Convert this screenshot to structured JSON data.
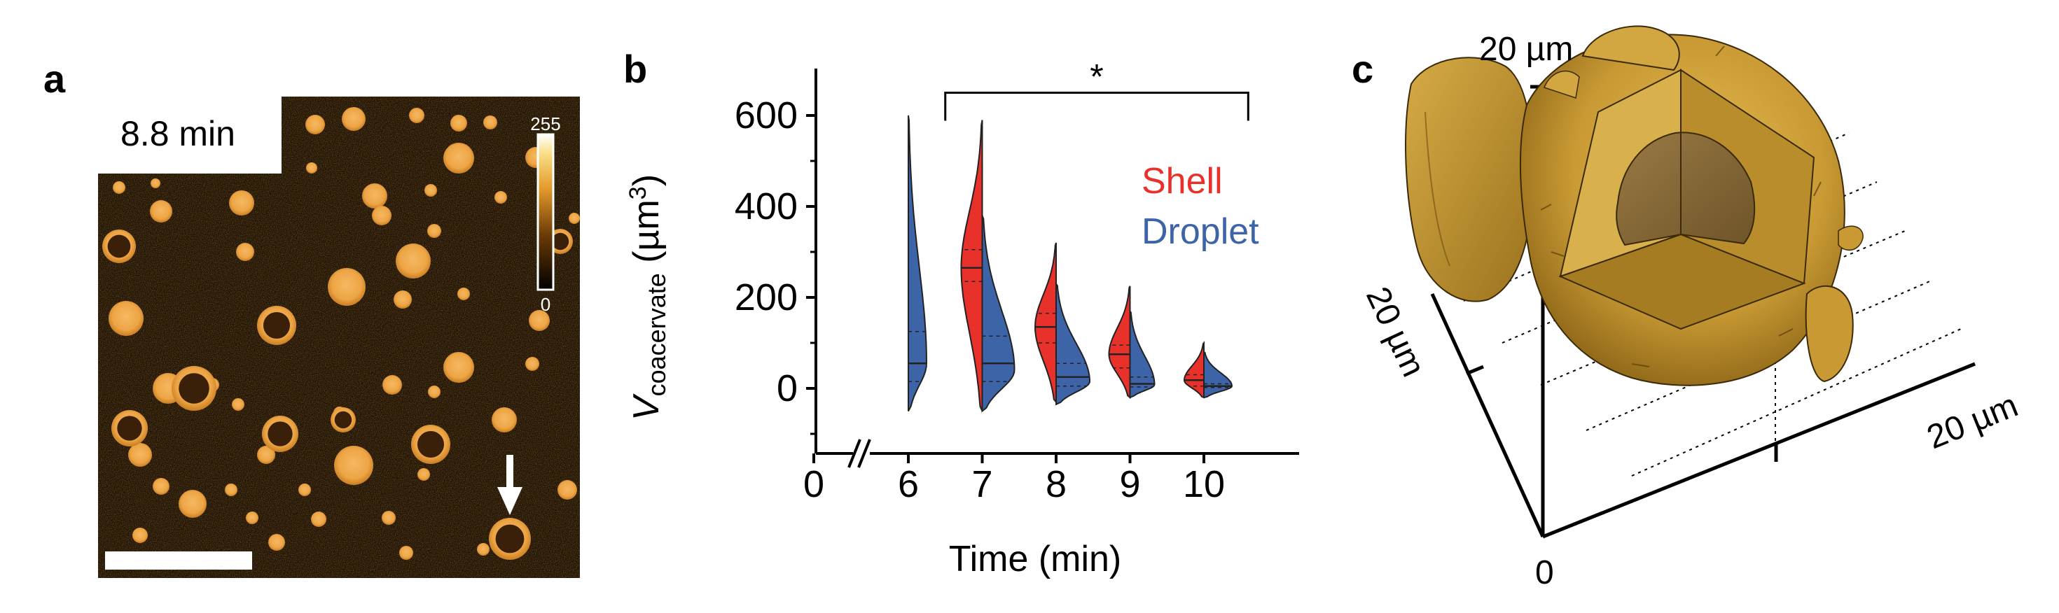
{
  "panels": {
    "a": {
      "letter": "a",
      "time_label": "8.8 min",
      "colorbar": {
        "max_label": "255",
        "min_label": "0"
      }
    },
    "b": {
      "letter": "b",
      "significance": "*",
      "legend": {
        "shell": {
          "label": "Shell",
          "color": "#e8312b"
        },
        "droplet": {
          "label": "Droplet",
          "color": "#3e64a8"
        }
      },
      "ylabel": {
        "main": "V",
        "sub": "coacervate",
        "unit_open": " (µm",
        "sup": "3",
        "unit_close": ")"
      },
      "xlabel": "Time (min)"
    },
    "c": {
      "letter": "c",
      "axis_labels": {
        "top": "20 µm",
        "left": "20 µm",
        "right": "20 µm",
        "origin": "0"
      },
      "surface_color": "#c99a34"
    }
  },
  "chart_data": {
    "type": "violin",
    "title": "",
    "xlabel": "Time (min)",
    "ylabel": "Vcoacervate (µm3)",
    "ylim": [
      -150,
      700
    ],
    "y_ticks": [
      0,
      200,
      400,
      600
    ],
    "x_ticks": [
      0,
      6,
      7,
      8,
      9,
      10
    ],
    "axis_break": "between 0 and 6",
    "series": [
      {
        "name": "Shell",
        "color": "#e8312b",
        "side": "left",
        "x": [
          7,
          8,
          9,
          10
        ],
        "min": [
          -50,
          -30,
          -20,
          -20
        ],
        "max": [
          590,
          320,
          225,
          100
        ],
        "q1": [
          235,
          100,
          45,
          5
        ],
        "median": [
          265,
          135,
          75,
          18
        ],
        "q3": [
          305,
          165,
          95,
          30
        ],
        "peak_y": [
          265,
          135,
          75,
          18
        ]
      },
      {
        "name": "Droplet",
        "color": "#3e64a8",
        "side": "right",
        "x": [
          6,
          7,
          8,
          9,
          10
        ],
        "min": [
          -50,
          -50,
          -35,
          -20,
          -20
        ],
        "max": [
          600,
          380,
          230,
          170,
          80
        ],
        "q1": [
          15,
          15,
          5,
          3,
          2
        ],
        "median": [
          55,
          55,
          25,
          10,
          5
        ],
        "q3": [
          125,
          115,
          55,
          25,
          10
        ],
        "peak_y": [
          55,
          40,
          15,
          8,
          5
        ]
      }
    ],
    "significance": {
      "from": 6.5,
      "to": 10.6,
      "label": "*"
    }
  }
}
